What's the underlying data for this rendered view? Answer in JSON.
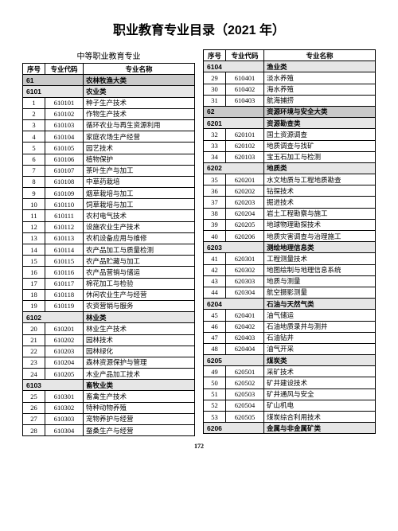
{
  "title": "职业教育专业目录（2021 年）",
  "sub_header": "中等职业教育专业",
  "page_number": "172",
  "table_headers": {
    "seq": "序号",
    "code": "专业代码",
    "name": "专业名称"
  },
  "left_rows": [
    {
      "type": "cat",
      "code": "61",
      "name": "农林牧渔大类"
    },
    {
      "type": "subcat",
      "code": "6101",
      "name": "农业类"
    },
    {
      "type": "data",
      "seq": "1",
      "code": "610101",
      "name": "种子生产技术"
    },
    {
      "type": "data",
      "seq": "2",
      "code": "610102",
      "name": "作物生产技术"
    },
    {
      "type": "data",
      "seq": "3",
      "code": "610103",
      "name": "循环农业与再生资源利用"
    },
    {
      "type": "data",
      "seq": "4",
      "code": "610104",
      "name": "家庭农场生产经营"
    },
    {
      "type": "data",
      "seq": "5",
      "code": "610105",
      "name": "园艺技术"
    },
    {
      "type": "data",
      "seq": "6",
      "code": "610106",
      "name": "植物保护"
    },
    {
      "type": "data",
      "seq": "7",
      "code": "610107",
      "name": "茶叶生产与加工"
    },
    {
      "type": "data",
      "seq": "8",
      "code": "610108",
      "name": "中草药栽培"
    },
    {
      "type": "data",
      "seq": "9",
      "code": "610109",
      "name": "烟草栽培与加工"
    },
    {
      "type": "data",
      "seq": "10",
      "code": "610110",
      "name": "饲草栽培与加工"
    },
    {
      "type": "data",
      "seq": "11",
      "code": "610111",
      "name": "农村电气技术"
    },
    {
      "type": "data",
      "seq": "12",
      "code": "610112",
      "name": "设施农业生产技术"
    },
    {
      "type": "data",
      "seq": "13",
      "code": "610113",
      "name": "农机设备应用与维修"
    },
    {
      "type": "data",
      "seq": "14",
      "code": "610114",
      "name": "农产品加工与质量检测"
    },
    {
      "type": "data",
      "seq": "15",
      "code": "610115",
      "name": "农产品贮藏与加工"
    },
    {
      "type": "data",
      "seq": "16",
      "code": "610116",
      "name": "农产品营销与储运"
    },
    {
      "type": "data",
      "seq": "17",
      "code": "610117",
      "name": "棉花加工与检验"
    },
    {
      "type": "data",
      "seq": "18",
      "code": "610118",
      "name": "休闲农业生产与经营"
    },
    {
      "type": "data",
      "seq": "19",
      "code": "610119",
      "name": "农资营销与服务"
    },
    {
      "type": "subcat",
      "code": "6102",
      "name": "林业类"
    },
    {
      "type": "data",
      "seq": "20",
      "code": "610201",
      "name": "林业生产技术"
    },
    {
      "type": "data",
      "seq": "21",
      "code": "610202",
      "name": "园林技术"
    },
    {
      "type": "data",
      "seq": "22",
      "code": "610203",
      "name": "园林绿化"
    },
    {
      "type": "data",
      "seq": "23",
      "code": "610204",
      "name": "森林资源保护与管理"
    },
    {
      "type": "data",
      "seq": "24",
      "code": "610205",
      "name": "木业产品加工技术"
    },
    {
      "type": "subcat",
      "code": "6103",
      "name": "畜牧业类"
    },
    {
      "type": "data",
      "seq": "25",
      "code": "610301",
      "name": "畜禽生产技术"
    },
    {
      "type": "data",
      "seq": "26",
      "code": "610302",
      "name": "特种动物养殖"
    },
    {
      "type": "data",
      "seq": "27",
      "code": "610303",
      "name": "宠物养护与经营"
    },
    {
      "type": "data",
      "seq": "28",
      "code": "610304",
      "name": "蚕桑生产与经营"
    }
  ],
  "right_rows": [
    {
      "type": "subcat",
      "code": "6104",
      "name": "渔业类"
    },
    {
      "type": "data",
      "seq": "29",
      "code": "610401",
      "name": "淡水养殖"
    },
    {
      "type": "data",
      "seq": "30",
      "code": "610402",
      "name": "海水养殖"
    },
    {
      "type": "data",
      "seq": "31",
      "code": "610403",
      "name": "航海捕捞"
    },
    {
      "type": "cat",
      "code": "62",
      "name": "资源环境与安全大类"
    },
    {
      "type": "subcat",
      "code": "6201",
      "name": "资源勘查类"
    },
    {
      "type": "data",
      "seq": "32",
      "code": "620101",
      "name": "国土资源调查"
    },
    {
      "type": "data",
      "seq": "33",
      "code": "620102",
      "name": "地质调查与找矿"
    },
    {
      "type": "data",
      "seq": "34",
      "code": "620103",
      "name": "宝玉石加工与检测"
    },
    {
      "type": "subcat",
      "code": "6202",
      "name": "地质类"
    },
    {
      "type": "data",
      "seq": "35",
      "code": "620201",
      "name": "水文地质与工程地质勘查"
    },
    {
      "type": "data",
      "seq": "36",
      "code": "620202",
      "name": "钻探技术"
    },
    {
      "type": "data",
      "seq": "37",
      "code": "620203",
      "name": "掘进技术"
    },
    {
      "type": "data",
      "seq": "38",
      "code": "620204",
      "name": "岩土工程勘察与施工"
    },
    {
      "type": "data",
      "seq": "39",
      "code": "620205",
      "name": "地球物理勘探技术"
    },
    {
      "type": "data",
      "seq": "40",
      "code": "620206",
      "name": "地质灾害调查与治理施工"
    },
    {
      "type": "subcat",
      "code": "6203",
      "name": "测绘地理信息类"
    },
    {
      "type": "data",
      "seq": "41",
      "code": "620301",
      "name": "工程测量技术"
    },
    {
      "type": "data",
      "seq": "42",
      "code": "620302",
      "name": "地图绘制与地理信息系统"
    },
    {
      "type": "data",
      "seq": "43",
      "code": "620303",
      "name": "地质与测量"
    },
    {
      "type": "data",
      "seq": "44",
      "code": "620304",
      "name": "航空摄影测量"
    },
    {
      "type": "subcat",
      "code": "6204",
      "name": "石油与天然气类"
    },
    {
      "type": "data",
      "seq": "45",
      "code": "620401",
      "name": "油气储运"
    },
    {
      "type": "data",
      "seq": "46",
      "code": "620402",
      "name": "石油地质录井与测井"
    },
    {
      "type": "data",
      "seq": "47",
      "code": "620403",
      "name": "石油钻井"
    },
    {
      "type": "data",
      "seq": "48",
      "code": "620404",
      "name": "油气开采"
    },
    {
      "type": "subcat",
      "code": "6205",
      "name": "煤炭类"
    },
    {
      "type": "data",
      "seq": "49",
      "code": "620501",
      "name": "采矿技术"
    },
    {
      "type": "data",
      "seq": "50",
      "code": "620502",
      "name": "矿井建设技术"
    },
    {
      "type": "data",
      "seq": "51",
      "code": "620503",
      "name": "矿井通风与安全"
    },
    {
      "type": "data",
      "seq": "52",
      "code": "620504",
      "name": "矿山机电"
    },
    {
      "type": "data",
      "seq": "53",
      "code": "620505",
      "name": "煤炭综合利用技术"
    },
    {
      "type": "subcat",
      "code": "6206",
      "name": "金属与非金属矿类"
    }
  ]
}
